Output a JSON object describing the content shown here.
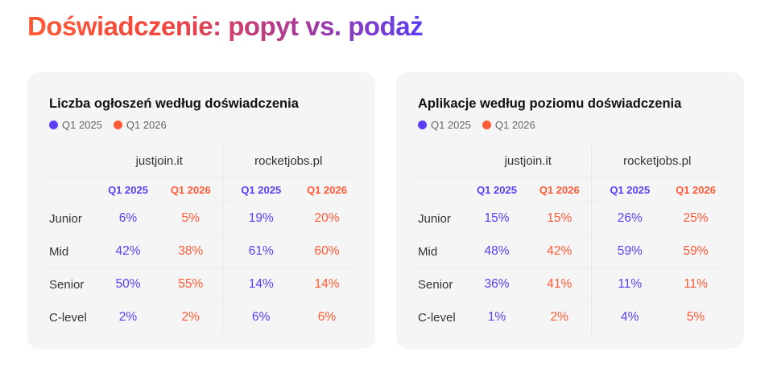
{
  "title": "Doświadczenie: popyt vs. podaż",
  "colors": {
    "q1_2025": "#5a3ff5",
    "q1_2026": "#ff5a36",
    "card_bg": "#f5f5f5"
  },
  "legend": [
    "Q1 2025",
    "Q1 2026"
  ],
  "sites": [
    "justjoin.it",
    "rocketjobs.pl"
  ],
  "periods": [
    "Q1 2025",
    "Q1 2026"
  ],
  "cards": [
    {
      "title": "Liczba ogłoszeń według doświadczenia",
      "rows": [
        {
          "label": "Junior",
          "values": [
            "6%",
            "5%",
            "19%",
            "20%"
          ]
        },
        {
          "label": "Mid",
          "values": [
            "42%",
            "38%",
            "61%",
            "60%"
          ]
        },
        {
          "label": "Senior",
          "values": [
            "50%",
            "55%",
            "14%",
            "14%"
          ]
        },
        {
          "label": "C-level",
          "values": [
            "2%",
            "2%",
            "6%",
            "6%"
          ]
        }
      ]
    },
    {
      "title": "Aplikacje według poziomu doświadczenia",
      "rows": [
        {
          "label": "Junior",
          "values": [
            "15%",
            "15%",
            "26%",
            "25%"
          ]
        },
        {
          "label": "Mid",
          "values": [
            "48%",
            "42%",
            "59%",
            "59%"
          ]
        },
        {
          "label": "Senior",
          "values": [
            "36%",
            "41%",
            "11%",
            "11%"
          ]
        },
        {
          "label": "C-level",
          "values": [
            "1%",
            "2%",
            "4%",
            "5%"
          ]
        }
      ]
    }
  ]
}
